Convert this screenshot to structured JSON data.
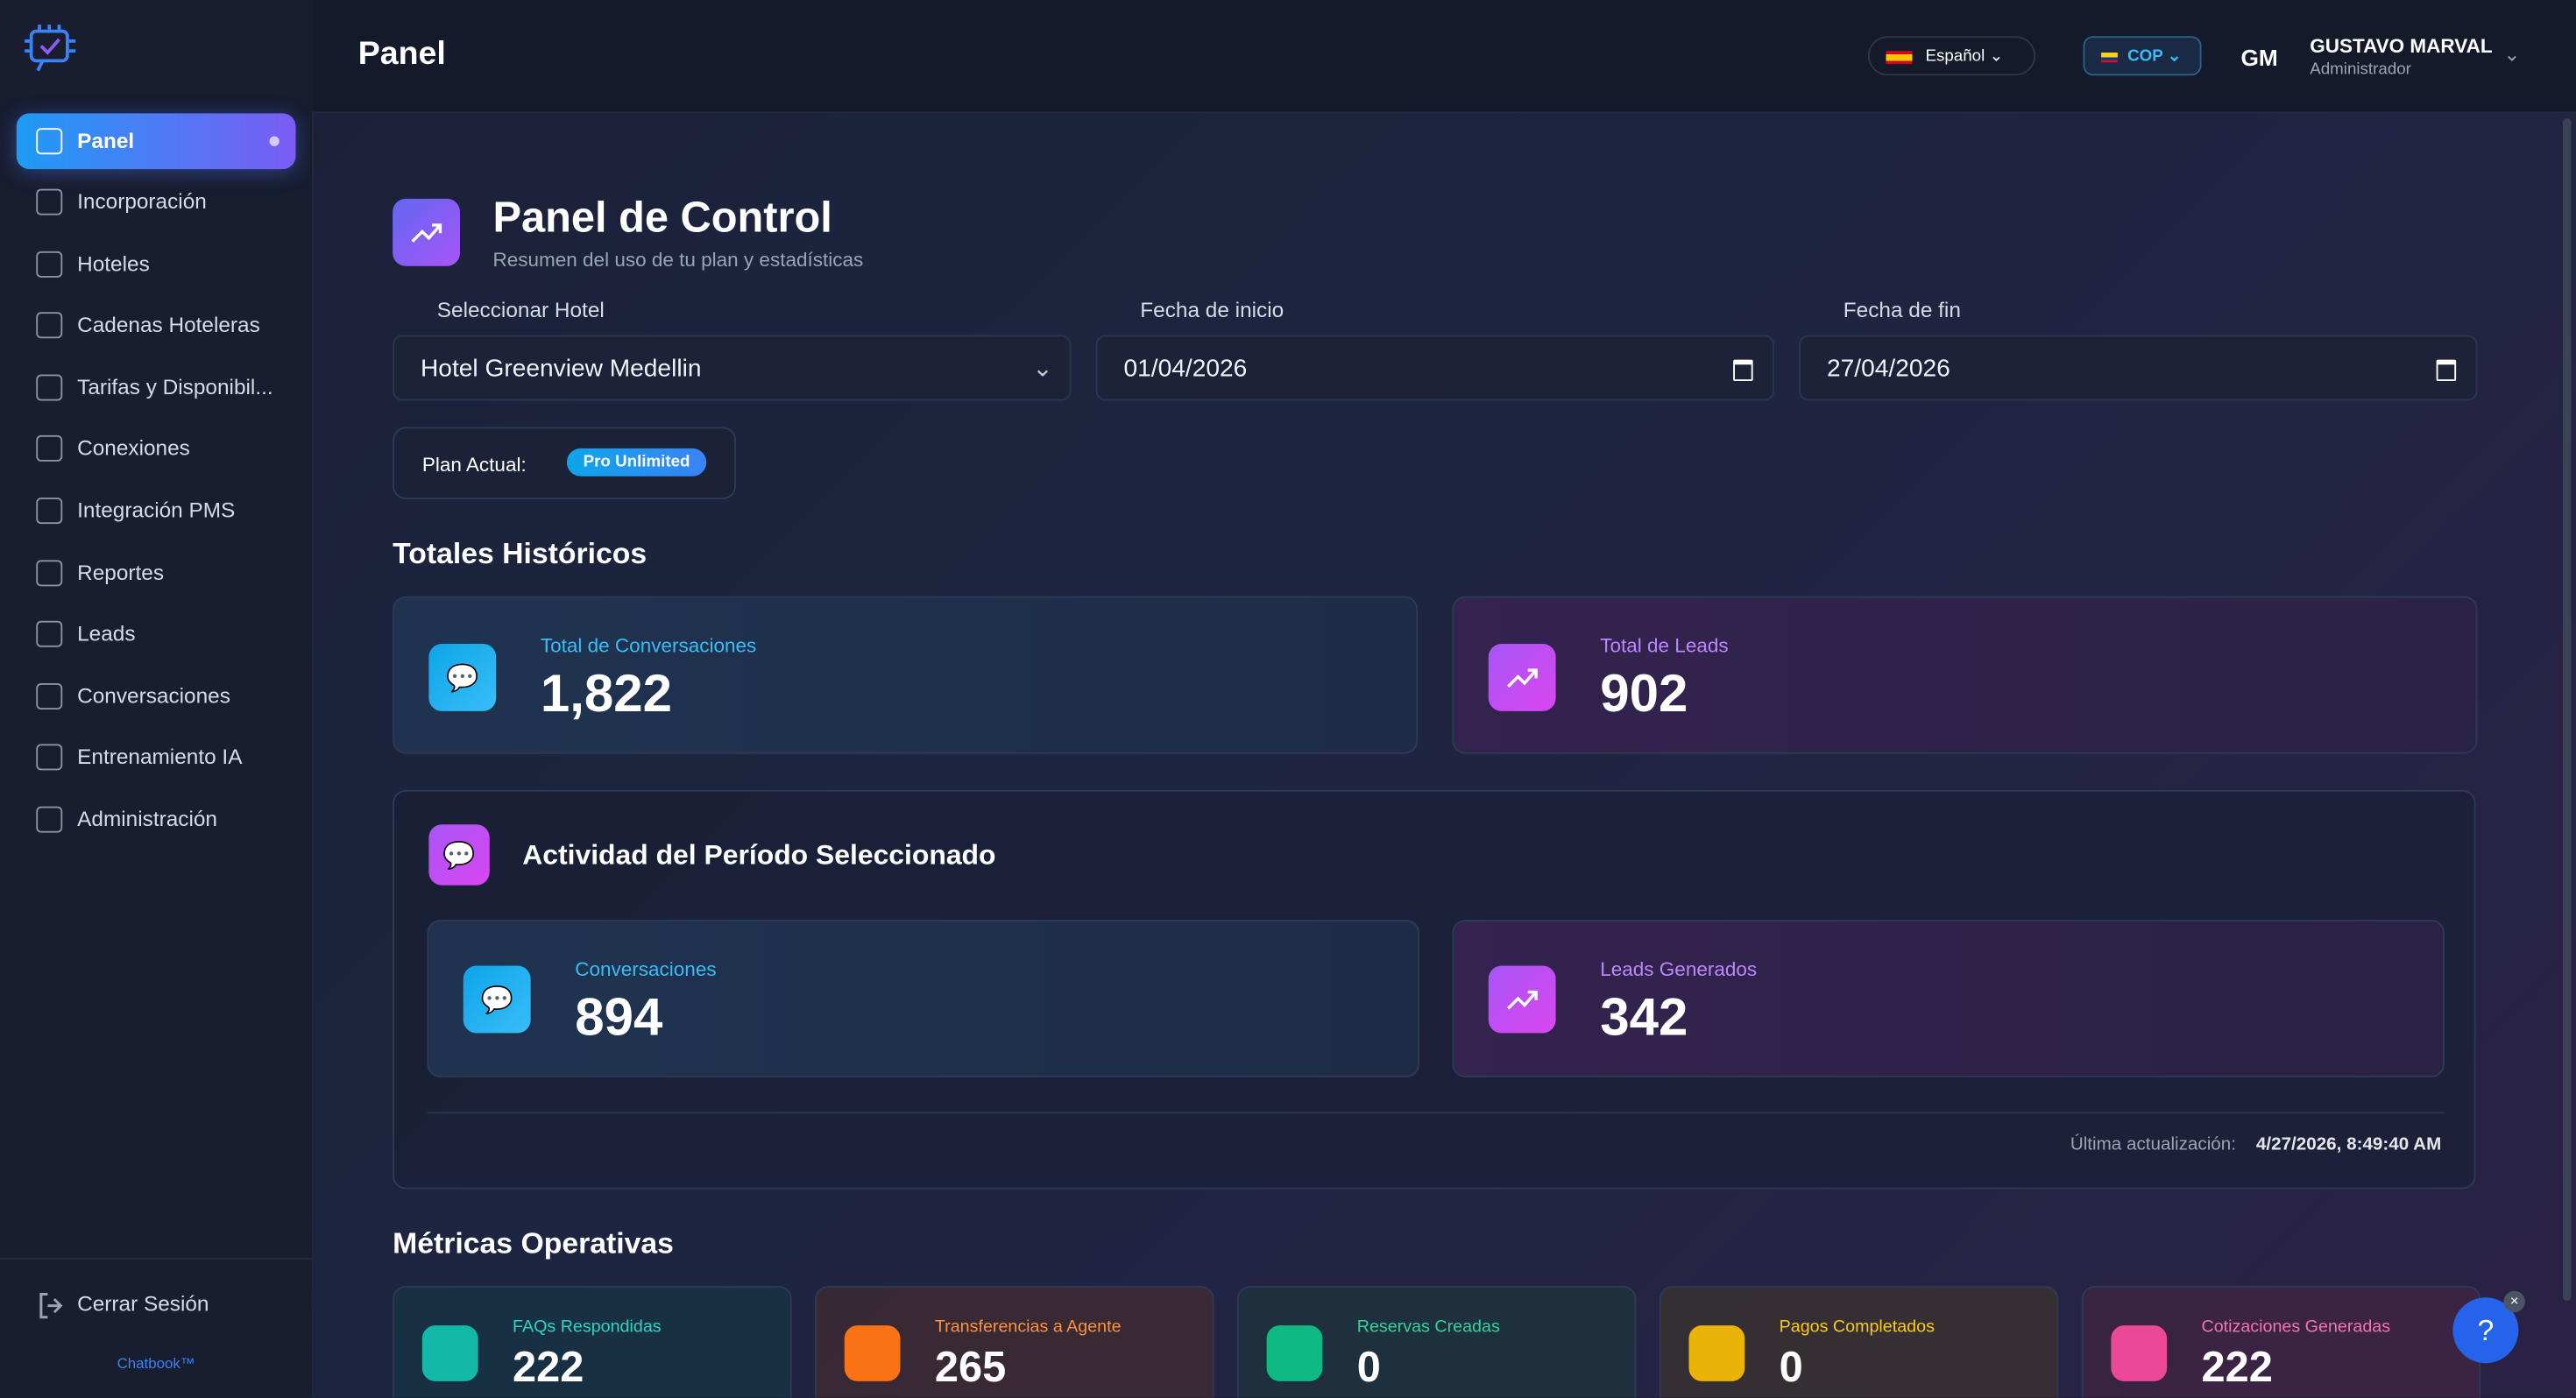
{
  "brand": "Chatbook™",
  "header": {
    "title": "Panel",
    "language": "Español",
    "currency": "COP",
    "user_initials": "GM",
    "user_name": "GUSTAVO MARVAL",
    "user_role": "Administrador"
  },
  "sidebar": {
    "items": [
      "Panel",
      "Incorporación",
      "Hoteles",
      "Cadenas Hoteleras",
      "Tarifas y Disponibil...",
      "Conexiones",
      "Integración PMS",
      "Reportes",
      "Leads",
      "Conversaciones",
      "Entrenamiento IA",
      "Administración"
    ],
    "logout": "Cerrar Sesión"
  },
  "page": {
    "title": "Panel de Control",
    "subtitle": "Resumen del uso de tu plan y estadísticas"
  },
  "filters": {
    "hotel_label": "Seleccionar Hotel",
    "hotel": "Hotel Greenview Medellin",
    "start_label": "Fecha de inicio",
    "start": "01/04/2026",
    "end_label": "Fecha de fin",
    "end": "27/04/2026"
  },
  "plan": {
    "label": "Plan Actual:",
    "value": "Pro Unlimited"
  },
  "historic": {
    "title": "Totales Históricos",
    "cards": [
      {
        "label": "Total de Conversaciones",
        "value": "1,822"
      },
      {
        "label": "Total de Leads",
        "value": "902"
      }
    ]
  },
  "period": {
    "title": "Actividad del Período Seleccionado",
    "cards": [
      {
        "label": "Conversaciones",
        "value": "894"
      },
      {
        "label": "Leads Generados",
        "value": "342"
      }
    ],
    "updated_label": "Última actualización:",
    "updated": "4/27/2026, 8:49:40 AM"
  },
  "metrics": {
    "title": "Métricas Operativas",
    "cards": [
      {
        "label": "FAQs Respondidas",
        "value": "222"
      },
      {
        "label": "Transferencias a Agente",
        "value": "265"
      },
      {
        "label": "Reservas Creadas",
        "value": "0"
      },
      {
        "label": "Pagos Completados",
        "value": "0"
      },
      {
        "label": "Cotizaciones Generadas",
        "value": "222"
      }
    ]
  }
}
